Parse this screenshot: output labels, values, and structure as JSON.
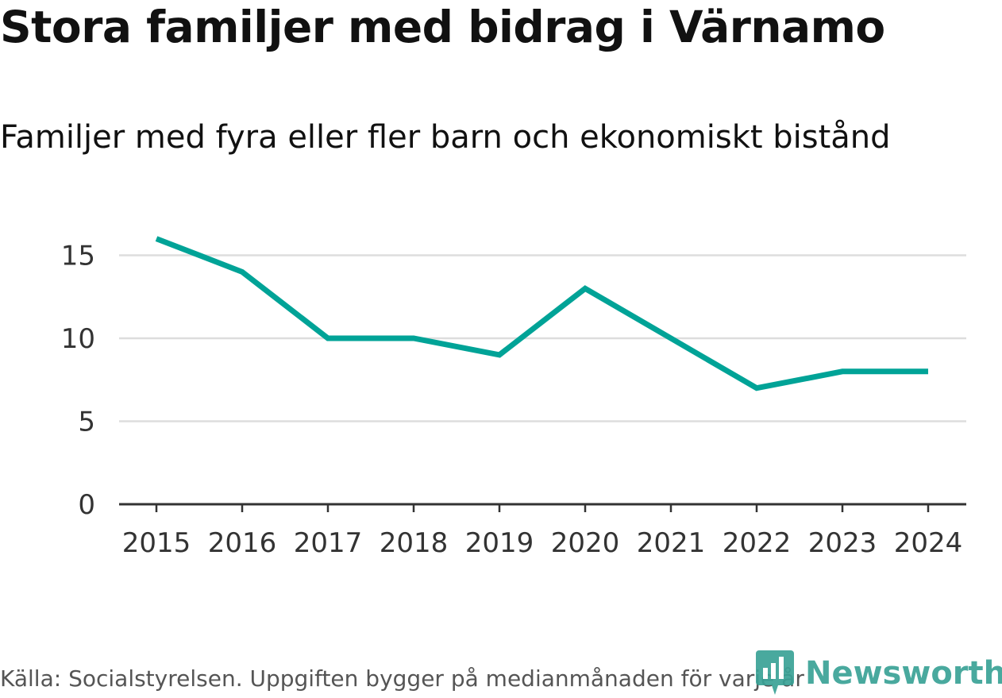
{
  "title": "Stora familjer med bidrag i Värnamo",
  "subtitle": "Familjer med fyra eller fler barn och ekonomiskt bistånd",
  "source": "Källa: Socialstyrelsen. Uppgiften bygger på medianmånaden för varje år",
  "brand": "Newsworthy",
  "colors": {
    "line": "#00a397",
    "grid": "#dddddd",
    "axis": "#333333",
    "brand": "#3aa296"
  },
  "chart_data": {
    "type": "line",
    "title": "Stora familjer med bidrag i Värnamo",
    "subtitle": "Familjer med fyra eller fler barn och ekonomiskt bistånd",
    "xlabel": "",
    "ylabel": "",
    "x": [
      "2015",
      "2016",
      "2017",
      "2018",
      "2019",
      "2020",
      "2021",
      "2022",
      "2023",
      "2024"
    ],
    "series": [
      {
        "name": "Familjer med fyra eller fler barn och ekonomiskt bistånd",
        "values": [
          16,
          14,
          10,
          10,
          9,
          13,
          10,
          7,
          8,
          8
        ]
      }
    ],
    "yticks": [
      0,
      5,
      10,
      15
    ],
    "ylim": [
      0,
      15
    ],
    "grid": true,
    "legend": "none"
  }
}
